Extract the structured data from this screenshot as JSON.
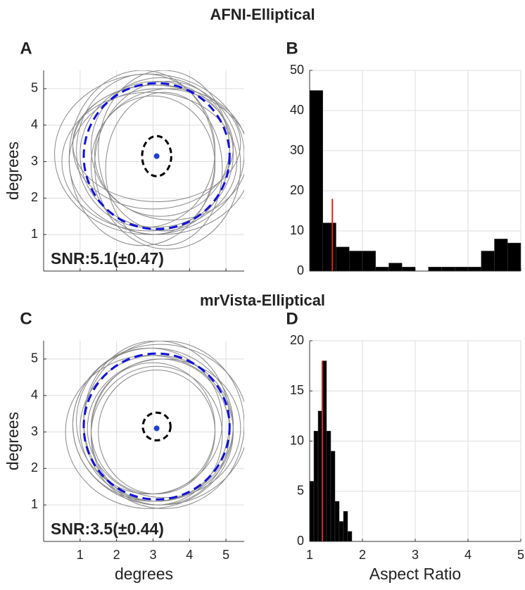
{
  "figure_titles": [
    "AFNI-Elliptical",
    "mrVista-Elliptical"
  ],
  "chart_data": [
    {
      "type": "ellipses",
      "panel_label": "A",
      "ylabel": "degrees",
      "annotation": "SNR:5.1(±0.47)",
      "xlim": [
        0,
        5.5
      ],
      "ylim": [
        0,
        5.5
      ],
      "xticks": [
        1,
        2,
        3,
        4,
        5
      ],
      "yticks": [
        1,
        2,
        3,
        4,
        5
      ],
      "xtick_labels": false,
      "grid": true,
      "ellipse_color": "#888888",
      "ellipses": [
        [
          3.1,
          3.2,
          2.1,
          2.0
        ],
        [
          2.9,
          3.0,
          2.4,
          1.9
        ],
        [
          3.3,
          3.3,
          1.8,
          2.2
        ],
        [
          3.0,
          3.4,
          2.2,
          1.7
        ],
        [
          3.4,
          2.9,
          2.0,
          2.3
        ],
        [
          2.8,
          3.3,
          1.9,
          2.1
        ],
        [
          3.2,
          3.0,
          2.5,
          2.0
        ],
        [
          3.0,
          2.9,
          1.7,
          1.9
        ],
        [
          3.5,
          3.2,
          2.1,
          1.8
        ],
        [
          2.7,
          3.1,
          2.0,
          2.4
        ],
        [
          3.1,
          3.5,
          2.3,
          1.6
        ],
        [
          3.3,
          2.8,
          1.6,
          2.1
        ],
        [
          2.9,
          3.2,
          2.6,
          2.2
        ],
        [
          3.2,
          3.4,
          1.9,
          1.9
        ]
      ],
      "mean_circle": {
        "cx": 3.1,
        "cy": 3.15,
        "r": 2.0,
        "color": "#1010e0"
      },
      "center_ellipse": {
        "cx": 3.1,
        "cy": 3.15,
        "rx": 0.4,
        "ry": 0.55,
        "color": "#000000"
      },
      "center_point": {
        "x": 3.1,
        "y": 3.15,
        "color": "#2040d0"
      }
    },
    {
      "type": "histogram",
      "panel_label": "B",
      "xlim": [
        1,
        5
      ],
      "ylim": [
        0,
        50
      ],
      "xticks": [
        1,
        2,
        3,
        4,
        5
      ],
      "yticks": [
        0,
        10,
        20,
        30,
        40,
        50
      ],
      "xtick_labels": false,
      "grid": true,
      "color": "#000000",
      "bins": [
        1,
        1.25,
        1.5,
        1.75,
        2,
        2.25,
        2.5,
        2.75,
        3,
        3.25,
        3.5,
        3.75,
        4,
        4.25,
        4.5,
        4.75,
        5
      ],
      "counts": [
        45,
        12,
        6,
        5,
        5,
        1,
        2,
        1,
        0,
        1,
        1,
        1,
        1,
        5,
        8,
        7
      ],
      "marker": {
        "x": 1.43,
        "y": 18,
        "color": "#e02020"
      }
    },
    {
      "type": "ellipses",
      "panel_label": "C",
      "xlabel": "degrees",
      "ylabel": "degrees",
      "annotation": "SNR:3.5(±0.44)",
      "xlim": [
        0,
        5.5
      ],
      "ylim": [
        0,
        5.5
      ],
      "xticks": [
        1,
        2,
        3,
        4,
        5
      ],
      "yticks": [
        1,
        2,
        3,
        4,
        5
      ],
      "xtick_labels": true,
      "grid": true,
      "ellipse_color": "#888888",
      "ellipses": [
        [
          3.1,
          3.1,
          2.1,
          2.0
        ],
        [
          3.0,
          3.2,
          2.2,
          2.1
        ],
        [
          3.2,
          3.0,
          1.9,
          2.0
        ],
        [
          3.1,
          3.3,
          2.0,
          2.2
        ],
        [
          2.9,
          3.0,
          2.3,
          2.1
        ],
        [
          3.3,
          3.1,
          2.1,
          1.9
        ],
        [
          3.0,
          3.1,
          1.7,
          1.8
        ],
        [
          3.2,
          3.2,
          2.4,
          2.2
        ],
        [
          3.1,
          2.9,
          1.8,
          1.9
        ],
        [
          2.9,
          3.3,
          2.0,
          2.0
        ],
        [
          3.3,
          3.2,
          2.2,
          2.3
        ],
        [
          3.1,
          3.0,
          1.6,
          1.7
        ]
      ],
      "mean_circle": {
        "cx": 3.1,
        "cy": 3.15,
        "r": 2.0,
        "color": "#1010e0"
      },
      "center_ellipse": {
        "cx": 3.1,
        "cy": 3.15,
        "rx": 0.38,
        "ry": 0.38,
        "color": "#000000"
      },
      "center_point": {
        "x": 3.1,
        "y": 3.1,
        "color": "#2040d0"
      }
    },
    {
      "type": "histogram",
      "panel_label": "D",
      "xlabel": "Aspect Ratio",
      "xlim": [
        1,
        5
      ],
      "ylim": [
        0,
        20
      ],
      "xticks": [
        1,
        2,
        3,
        4,
        5
      ],
      "yticks": [
        0,
        5,
        10,
        15,
        20
      ],
      "xtick_labels": true,
      "grid": true,
      "color": "#000000",
      "bins": [
        1,
        1.08,
        1.16,
        1.24,
        1.32,
        1.4,
        1.48,
        1.56,
        1.64,
        1.72,
        1.8
      ],
      "counts": [
        6,
        11,
        13,
        18,
        11,
        9,
        4,
        2,
        3,
        1
      ],
      "marker": {
        "x": 1.24,
        "y": 18,
        "color": "#e02020"
      }
    }
  ]
}
